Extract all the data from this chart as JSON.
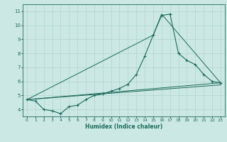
{
  "title": "",
  "xlabel": "Humidex (Indice chaleur)",
  "ylabel": "",
  "bg_color": "#cce8e4",
  "grid_color": "#aed4cf",
  "line_color": "#1a6b5a",
  "xlim": [
    -0.5,
    23.5
  ],
  "ylim": [
    3.5,
    11.5
  ],
  "xticks": [
    0,
    1,
    2,
    3,
    4,
    5,
    6,
    7,
    8,
    9,
    10,
    11,
    12,
    13,
    14,
    15,
    16,
    17,
    18,
    19,
    20,
    21,
    22,
    23
  ],
  "yticks": [
    4,
    5,
    6,
    7,
    8,
    9,
    10,
    11
  ],
  "series": [
    {
      "x": [
        0,
        1,
        2,
        3,
        4,
        5,
        6,
        7,
        8,
        9,
        10,
        11,
        12,
        13,
        14,
        15,
        16,
        17,
        18,
        19,
        20,
        21,
        22,
        23
      ],
      "y": [
        4.7,
        4.6,
        4.0,
        3.9,
        3.7,
        4.2,
        4.3,
        4.7,
        5.0,
        5.1,
        5.3,
        5.5,
        5.8,
        6.5,
        7.8,
        9.3,
        10.7,
        10.8,
        8.0,
        7.5,
        7.2,
        6.5,
        6.0,
        5.9
      ],
      "marker": true,
      "lw": 0.8
    },
    {
      "x": [
        0,
        23
      ],
      "y": [
        4.7,
        5.9
      ],
      "marker": false,
      "lw": 0.7
    },
    {
      "x": [
        0,
        15,
        16,
        23
      ],
      "y": [
        4.7,
        9.3,
        10.8,
        5.9
      ],
      "marker": false,
      "lw": 0.7
    },
    {
      "x": [
        0,
        23
      ],
      "y": [
        4.7,
        5.75
      ],
      "marker": false,
      "lw": 0.7
    }
  ]
}
